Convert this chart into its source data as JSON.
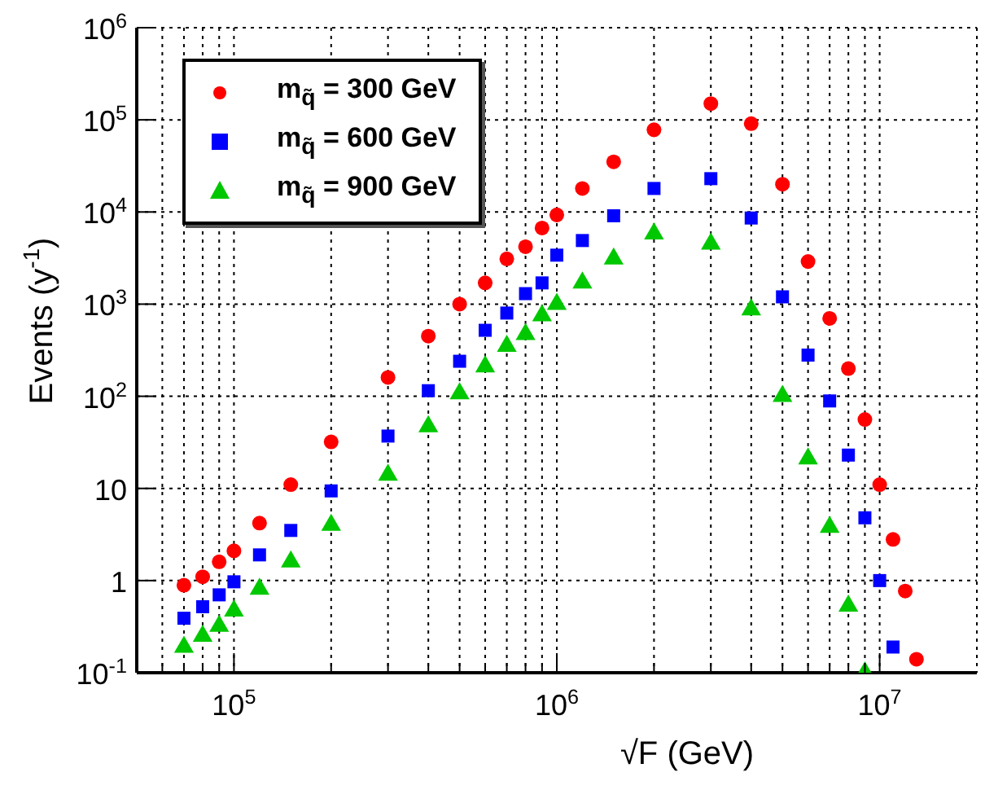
{
  "chart_data": {
    "type": "scatter",
    "xlabel": "√F (GeV)",
    "ylabel": "Events (y$^{-1}$)",
    "log": "xy",
    "grid": true,
    "legend": "top left",
    "xlim": [
      50000,
      20000000
    ],
    "ylim": [
      0.1,
      1000000
    ],
    "xticks": [
      {
        "value": 50000,
        "label": null
      },
      {
        "value": 60000,
        "label": null
      },
      {
        "value": 70000,
        "label": null
      },
      {
        "value": 80000,
        "label": null
      },
      {
        "value": 90000,
        "label": null
      },
      {
        "value": 100000,
        "label": "10$^{5}$"
      },
      {
        "value": 200000,
        "label": null
      },
      {
        "value": 300000,
        "label": null
      },
      {
        "value": 400000,
        "label": null
      },
      {
        "value": 500000,
        "label": null
      },
      {
        "value": 600000,
        "label": null
      },
      {
        "value": 700000,
        "label": null
      },
      {
        "value": 800000,
        "label": null
      },
      {
        "value": 900000,
        "label": null
      },
      {
        "value": 1000000,
        "label": "10$^{6}$"
      },
      {
        "value": 2000000,
        "label": null
      },
      {
        "value": 3000000,
        "label": null
      },
      {
        "value": 4000000,
        "label": null
      },
      {
        "value": 5000000,
        "label": null
      },
      {
        "value": 6000000,
        "label": null
      },
      {
        "value": 7000000,
        "label": null
      },
      {
        "value": 8000000,
        "label": null
      },
      {
        "value": 9000000,
        "label": null
      },
      {
        "value": 10000000,
        "label": "10$^{7}$"
      }
    ],
    "yticks": [
      {
        "value": 0.1,
        "label": "10$^{-1}$"
      },
      1,
      10,
      {
        "value": 100,
        "label": "10$^{2}$"
      },
      {
        "value": 1000,
        "label": "10$^{3}$"
      },
      {
        "value": 10000,
        "label": "10$^{4}$"
      },
      {
        "value": 100000,
        "label": "10$^{5}$"
      },
      {
        "value": 1000000,
        "label": "10$^{6}$"
      }
    ],
    "series": [
      {
        "name": "m$_{q̃}$ = 300 GeV",
        "color": "#ff0000",
        "marker": "circle",
        "x": [
          70000,
          80000,
          90000,
          100000,
          120000,
          150000,
          200000,
          300000,
          400000,
          500000,
          600000,
          700000,
          800000,
          900000,
          1000000,
          1200000,
          1500000,
          2000000,
          3000000,
          4000000,
          5000000,
          6000000,
          7000000,
          8000000,
          9000000,
          10000000,
          11000000,
          12000000,
          13000000
        ],
        "values": [
          0.89,
          1.1,
          1.6,
          2.1,
          4.2,
          11,
          32,
          160,
          450,
          1000,
          1700,
          3100,
          4200,
          6700,
          9300,
          18000,
          35000,
          78000,
          150000,
          91000,
          20000,
          2900,
          700,
          200,
          56,
          11,
          2.8,
          0.77,
          0.14
        ]
      },
      {
        "name": "m$_{q̃}$ = 600 GeV",
        "color": "#0000ff",
        "marker": "square",
        "x": [
          70000,
          80000,
          90000,
          100000,
          120000,
          150000,
          200000,
          300000,
          400000,
          500000,
          600000,
          700000,
          800000,
          900000,
          1000000,
          1200000,
          1500000,
          2000000,
          3000000,
          4000000,
          5000000,
          6000000,
          7000000,
          8000000,
          9000000,
          10000000,
          11000000
        ],
        "values": [
          0.39,
          0.52,
          0.7,
          0.97,
          1.9,
          3.5,
          9.4,
          37,
          115,
          240,
          520,
          800,
          1300,
          1700,
          3400,
          4900,
          9100,
          18000,
          23000,
          8600,
          1200,
          280,
          89,
          23,
          4.8,
          1,
          0.19
        ]
      },
      {
        "name": "m$_{q̃}$ = 900 GeV",
        "color": "#00c800",
        "marker": "triangle",
        "x": [
          70000,
          80000,
          90000,
          100000,
          120000,
          150000,
          200000,
          300000,
          400000,
          500000,
          600000,
          700000,
          800000,
          900000,
          1000000,
          1200000,
          1500000,
          2000000,
          3000000,
          4000000,
          5000000,
          6000000,
          7000000,
          8000000,
          9000000
        ],
        "values": [
          0.19,
          0.25,
          0.32,
          0.47,
          0.81,
          1.6,
          4,
          14,
          47,
          107,
          210,
          350,
          470,
          750,
          1000,
          1700,
          3100,
          5800,
          4500,
          870,
          100,
          21,
          3.8,
          0.53,
          0.1
        ]
      }
    ]
  }
}
